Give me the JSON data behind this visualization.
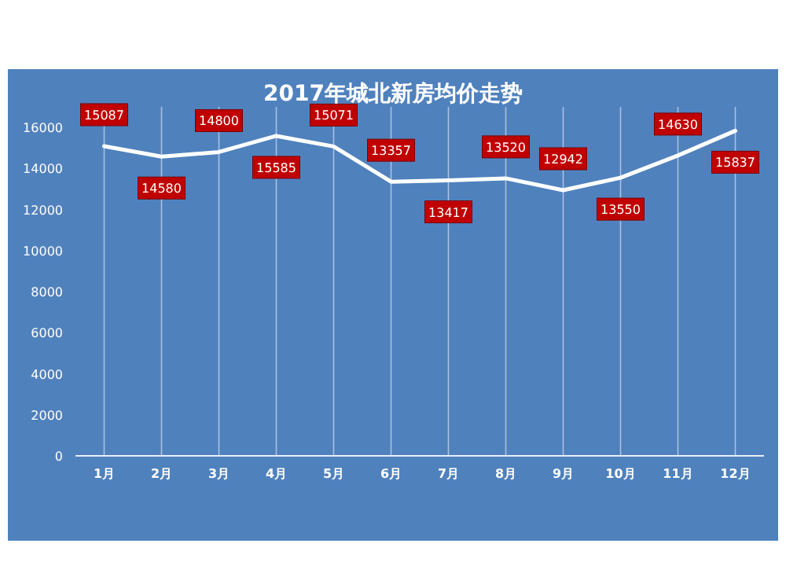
{
  "chart_data": {
    "type": "line",
    "title": "2017年城北新房均价走势",
    "categories": [
      "1月",
      "2月",
      "3月",
      "4月",
      "5月",
      "6月",
      "7月",
      "8月",
      "9月",
      "10月",
      "11月",
      "12月"
    ],
    "series": [
      {
        "color": "#ffffff",
        "values": [
          15087,
          14580,
          14800,
          15585,
          15071,
          13357,
          13417,
          13520,
          12942,
          13550,
          14630,
          15837
        ]
      }
    ],
    "ylim": [
      0,
      17000
    ],
    "yticks": [
      0,
      2000,
      4000,
      6000,
      8000,
      10000,
      12000,
      14000,
      16000
    ],
    "grid": "x",
    "data_labels": true,
    "marker": "none",
    "line_style": "solid"
  }
}
